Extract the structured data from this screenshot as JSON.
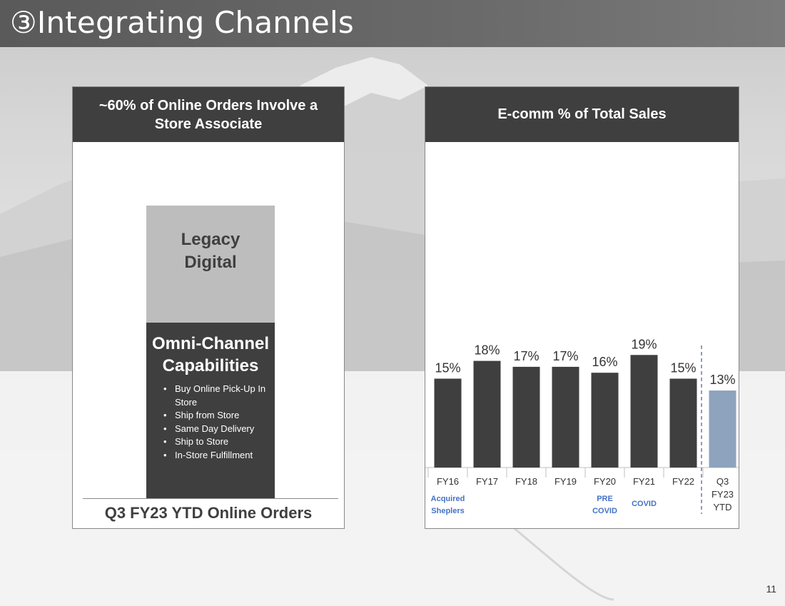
{
  "slide": {
    "title": "③Integrating Channels",
    "page_number": "11"
  },
  "left_panel": {
    "header": "~60% of Online Orders Involve a Store Associate",
    "stack_top_label": "Legacy Digital",
    "stack_bottom_title": "Omni-Channel Capabilities",
    "capabilities": [
      "Buy Online Pick-Up In Store",
      "Ship from Store",
      "Same Day Delivery",
      "Ship to Store",
      "In-Store Fulfillment"
    ],
    "footer": "Q3 FY23 YTD Online Orders"
  },
  "right_panel": {
    "header": "E-comm % of Total Sales"
  },
  "chart_data": {
    "type": "bar",
    "title": "E-comm % of Total Sales",
    "categories": [
      "FY16",
      "FY17",
      "FY18",
      "FY19",
      "FY20",
      "FY21",
      "FY22",
      "Q3 FY23 YTD"
    ],
    "values": [
      15,
      18,
      17,
      17,
      16,
      19,
      15,
      13
    ],
    "data_labels": [
      "15%",
      "18%",
      "17%",
      "17%",
      "16%",
      "19%",
      "15%",
      "13%"
    ],
    "annotations": [
      {
        "category": "FY16",
        "text": "Acquired Sheplers"
      },
      {
        "category": "FY20",
        "text": "PRE COVID"
      },
      {
        "category": "FY21",
        "text": "COVID"
      }
    ],
    "colors": {
      "bar": "#3f3f3f",
      "highlight_bar": "#8ea3bd",
      "annotation": "#4472c4",
      "divider": "#6b7f99"
    },
    "highlight_category": "Q3 FY23 YTD",
    "xlabel": "",
    "ylabel": "",
    "grid": false
  }
}
